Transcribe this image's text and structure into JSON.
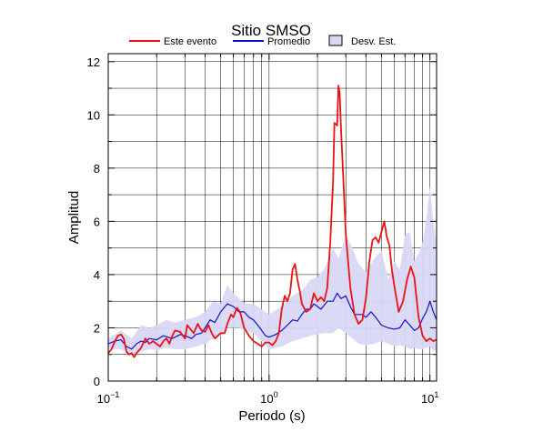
{
  "chart_data": {
    "type": "line",
    "title": "Sitio SMSO",
    "xlabel": "Periodo (s)",
    "ylabel": "Amplitud",
    "xscale": "log",
    "xlim": [
      0.1,
      11
    ],
    "ylim": [
      0,
      12.3
    ],
    "x_ticks": [
      {
        "value": 0.1,
        "base": "10",
        "exp": "−1"
      },
      {
        "value": 1,
        "base": "10",
        "exp": "0"
      },
      {
        "value": 10,
        "base": "10",
        "exp": "1"
      }
    ],
    "y_ticks": [
      "0",
      "2",
      "4",
      "6",
      "8",
      "10",
      "12"
    ],
    "grid": true,
    "legend_position": "top",
    "legend": [
      {
        "label": "Este evento",
        "color": "#ee1111",
        "kind": "line"
      },
      {
        "label": "Promedio",
        "color": "#1111cc",
        "kind": "line"
      },
      {
        "label": "Desv. Est.",
        "color": "#d8d8f6",
        "kind": "box"
      }
    ],
    "series": [
      {
        "name": "Este evento",
        "color": "#ee1111",
        "points": [
          [
            0.1,
            1.05
          ],
          [
            0.105,
            1.2
          ],
          [
            0.11,
            1.5
          ],
          [
            0.115,
            1.7
          ],
          [
            0.12,
            1.75
          ],
          [
            0.125,
            1.6
          ],
          [
            0.13,
            1.1
          ],
          [
            0.135,
            1.0
          ],
          [
            0.14,
            1.05
          ],
          [
            0.145,
            0.9
          ],
          [
            0.15,
            1.05
          ],
          [
            0.16,
            1.25
          ],
          [
            0.17,
            1.6
          ],
          [
            0.18,
            1.4
          ],
          [
            0.19,
            1.5
          ],
          [
            0.2,
            1.4
          ],
          [
            0.21,
            1.3
          ],
          [
            0.22,
            1.5
          ],
          [
            0.23,
            1.6
          ],
          [
            0.24,
            1.4
          ],
          [
            0.25,
            1.7
          ],
          [
            0.26,
            1.9
          ],
          [
            0.28,
            1.85
          ],
          [
            0.3,
            1.6
          ],
          [
            0.31,
            2.1
          ],
          [
            0.32,
            2.0
          ],
          [
            0.34,
            1.8
          ],
          [
            0.36,
            2.15
          ],
          [
            0.38,
            1.9
          ],
          [
            0.4,
            1.85
          ],
          [
            0.42,
            2.1
          ],
          [
            0.44,
            1.8
          ],
          [
            0.46,
            1.6
          ],
          [
            0.48,
            1.7
          ],
          [
            0.5,
            1.8
          ],
          [
            0.53,
            1.8
          ],
          [
            0.55,
            2.15
          ],
          [
            0.58,
            2.5
          ],
          [
            0.6,
            2.4
          ],
          [
            0.63,
            2.75
          ],
          [
            0.66,
            2.6
          ],
          [
            0.7,
            2.0
          ],
          [
            0.75,
            1.7
          ],
          [
            0.8,
            1.5
          ],
          [
            0.85,
            1.4
          ],
          [
            0.9,
            1.3
          ],
          [
            0.95,
            1.45
          ],
          [
            1.0,
            1.45
          ],
          [
            1.05,
            1.35
          ],
          [
            1.1,
            1.5
          ],
          [
            1.15,
            1.8
          ],
          [
            1.2,
            2.7
          ],
          [
            1.25,
            3.2
          ],
          [
            1.3,
            3.0
          ],
          [
            1.35,
            3.3
          ],
          [
            1.4,
            4.2
          ],
          [
            1.45,
            4.4
          ],
          [
            1.5,
            3.8
          ],
          [
            1.55,
            3.4
          ],
          [
            1.6,
            2.9
          ],
          [
            1.7,
            2.6
          ],
          [
            1.8,
            2.7
          ],
          [
            1.9,
            3.3
          ],
          [
            2.0,
            3.0
          ],
          [
            2.1,
            3.15
          ],
          [
            2.2,
            3.0
          ],
          [
            2.3,
            3.5
          ],
          [
            2.4,
            5.2
          ],
          [
            2.5,
            7.5
          ],
          [
            2.55,
            9.7
          ],
          [
            2.65,
            9.6
          ],
          [
            2.7,
            11.1
          ],
          [
            2.75,
            10.8
          ],
          [
            2.8,
            9.5
          ],
          [
            2.9,
            7.5
          ],
          [
            3.0,
            5.5
          ],
          [
            3.2,
            3.5
          ],
          [
            3.4,
            2.5
          ],
          [
            3.6,
            2.15
          ],
          [
            3.8,
            2.3
          ],
          [
            4.0,
            3.1
          ],
          [
            4.2,
            4.5
          ],
          [
            4.4,
            5.3
          ],
          [
            4.6,
            5.4
          ],
          [
            4.8,
            5.2
          ],
          [
            5.0,
            5.6
          ],
          [
            5.2,
            6.0
          ],
          [
            5.4,
            5.4
          ],
          [
            5.6,
            5.1
          ],
          [
            5.8,
            4.2
          ],
          [
            6.0,
            3.6
          ],
          [
            6.4,
            2.6
          ],
          [
            6.8,
            3.0
          ],
          [
            7.2,
            3.8
          ],
          [
            7.6,
            4.3
          ],
          [
            8.0,
            3.9
          ],
          [
            8.5,
            2.4
          ],
          [
            9.0,
            1.7
          ],
          [
            9.5,
            1.5
          ],
          [
            10.0,
            1.6
          ],
          [
            10.5,
            1.5
          ],
          [
            11.0,
            1.55
          ]
        ]
      },
      {
        "name": "Promedio",
        "color": "#1111cc",
        "points": [
          [
            0.1,
            1.4
          ],
          [
            0.11,
            1.5
          ],
          [
            0.12,
            1.55
          ],
          [
            0.13,
            1.3
          ],
          [
            0.14,
            1.2
          ],
          [
            0.15,
            1.4
          ],
          [
            0.16,
            1.5
          ],
          [
            0.17,
            1.45
          ],
          [
            0.18,
            1.6
          ],
          [
            0.2,
            1.55
          ],
          [
            0.22,
            1.7
          ],
          [
            0.25,
            1.6
          ],
          [
            0.28,
            1.75
          ],
          [
            0.3,
            1.7
          ],
          [
            0.33,
            1.6
          ],
          [
            0.35,
            1.75
          ],
          [
            0.38,
            1.8
          ],
          [
            0.4,
            2.0
          ],
          [
            0.43,
            2.3
          ],
          [
            0.46,
            2.2
          ],
          [
            0.5,
            2.6
          ],
          [
            0.55,
            2.9
          ],
          [
            0.6,
            2.8
          ],
          [
            0.65,
            2.6
          ],
          [
            0.7,
            2.6
          ],
          [
            0.75,
            2.4
          ],
          [
            0.8,
            2.3
          ],
          [
            0.85,
            2.1
          ],
          [
            0.9,
            1.9
          ],
          [
            0.95,
            1.7
          ],
          [
            1.0,
            1.65
          ],
          [
            1.1,
            1.75
          ],
          [
            1.2,
            1.9
          ],
          [
            1.3,
            2.1
          ],
          [
            1.4,
            2.3
          ],
          [
            1.5,
            2.25
          ],
          [
            1.6,
            2.5
          ],
          [
            1.7,
            2.7
          ],
          [
            1.8,
            2.7
          ],
          [
            1.9,
            2.9
          ],
          [
            2.0,
            2.8
          ],
          [
            2.1,
            2.7
          ],
          [
            2.2,
            2.85
          ],
          [
            2.3,
            3.0
          ],
          [
            2.5,
            3.0
          ],
          [
            2.65,
            3.3
          ],
          [
            2.8,
            3.1
          ],
          [
            3.0,
            3.2
          ],
          [
            3.2,
            2.8
          ],
          [
            3.4,
            2.5
          ],
          [
            3.6,
            2.5
          ],
          [
            3.8,
            2.5
          ],
          [
            4.0,
            2.4
          ],
          [
            4.3,
            2.6
          ],
          [
            4.6,
            2.4
          ],
          [
            5.0,
            2.1
          ],
          [
            5.5,
            2.0
          ],
          [
            6.0,
            1.95
          ],
          [
            6.5,
            2.0
          ],
          [
            7.0,
            2.3
          ],
          [
            7.5,
            2.1
          ],
          [
            8.0,
            1.9
          ],
          [
            8.5,
            2.0
          ],
          [
            9.0,
            2.35
          ],
          [
            9.5,
            2.6
          ],
          [
            10.0,
            3.0
          ],
          [
            10.5,
            2.6
          ],
          [
            11.0,
            2.3
          ]
        ]
      }
    ],
    "band": {
      "name": "Desv. Est.",
      "color": "#d8d8f6",
      "upper": [
        [
          0.1,
          1.6
        ],
        [
          0.12,
          1.9
        ],
        [
          0.14,
          1.6
        ],
        [
          0.16,
          2.1
        ],
        [
          0.18,
          2.0
        ],
        [
          0.2,
          2.1
        ],
        [
          0.23,
          2.3
        ],
        [
          0.26,
          2.2
        ],
        [
          0.3,
          2.3
        ],
        [
          0.35,
          2.4
        ],
        [
          0.4,
          2.6
        ],
        [
          0.45,
          3.0
        ],
        [
          0.5,
          2.9
        ],
        [
          0.55,
          3.6
        ],
        [
          0.6,
          3.3
        ],
        [
          0.65,
          3.1
        ],
        [
          0.7,
          2.9
        ],
        [
          0.8,
          2.9
        ],
        [
          0.9,
          2.7
        ],
        [
          1.0,
          2.5
        ],
        [
          1.2,
          2.8
        ],
        [
          1.4,
          3.2
        ],
        [
          1.6,
          3.4
        ],
        [
          1.8,
          3.8
        ],
        [
          2.0,
          3.9
        ],
        [
          2.2,
          4.2
        ],
        [
          2.5,
          5.0
        ],
        [
          2.7,
          4.6
        ],
        [
          3.0,
          5.5
        ],
        [
          3.3,
          5.0
        ],
        [
          3.6,
          4.4
        ],
        [
          4.0,
          4.1
        ],
        [
          4.5,
          4.6
        ],
        [
          5.0,
          4.9
        ],
        [
          5.5,
          3.8
        ],
        [
          6.0,
          4.5
        ],
        [
          6.5,
          4.2
        ],
        [
          7.0,
          5.5
        ],
        [
          7.5,
          5.6
        ],
        [
          8.0,
          4.5
        ],
        [
          8.5,
          4.8
        ],
        [
          9.0,
          5.2
        ],
        [
          9.5,
          6.1
        ],
        [
          10.0,
          7.3
        ],
        [
          10.5,
          6.0
        ],
        [
          11.0,
          5.2
        ]
      ],
      "lower": [
        [
          0.1,
          1.2
        ],
        [
          0.12,
          1.2
        ],
        [
          0.14,
          1.0
        ],
        [
          0.16,
          1.1
        ],
        [
          0.18,
          1.2
        ],
        [
          0.2,
          1.15
        ],
        [
          0.23,
          1.25
        ],
        [
          0.26,
          1.2
        ],
        [
          0.3,
          1.2
        ],
        [
          0.35,
          1.3
        ],
        [
          0.4,
          1.4
        ],
        [
          0.45,
          1.6
        ],
        [
          0.5,
          1.7
        ],
        [
          0.55,
          2.0
        ],
        [
          0.6,
          2.0
        ],
        [
          0.65,
          2.0
        ],
        [
          0.7,
          1.9
        ],
        [
          0.8,
          1.8
        ],
        [
          0.9,
          1.5
        ],
        [
          1.0,
          1.2
        ],
        [
          1.2,
          1.3
        ],
        [
          1.4,
          1.5
        ],
        [
          1.6,
          1.6
        ],
        [
          1.8,
          1.7
        ],
        [
          2.0,
          1.75
        ],
        [
          2.2,
          1.8
        ],
        [
          2.5,
          1.8
        ],
        [
          2.7,
          2.0
        ],
        [
          3.0,
          1.8
        ],
        [
          3.3,
          1.6
        ],
        [
          3.6,
          1.4
        ],
        [
          4.0,
          1.35
        ],
        [
          4.5,
          1.4
        ],
        [
          5.0,
          1.5
        ],
        [
          5.5,
          1.4
        ],
        [
          6.0,
          1.3
        ],
        [
          6.5,
          1.35
        ],
        [
          7.0,
          1.3
        ],
        [
          7.5,
          1.2
        ],
        [
          8.0,
          1.25
        ],
        [
          8.5,
          1.2
        ],
        [
          9.0,
          1.2
        ],
        [
          9.5,
          1.25
        ],
        [
          10.0,
          1.3
        ],
        [
          10.5,
          1.15
        ],
        [
          11.0,
          1.1
        ]
      ]
    }
  }
}
